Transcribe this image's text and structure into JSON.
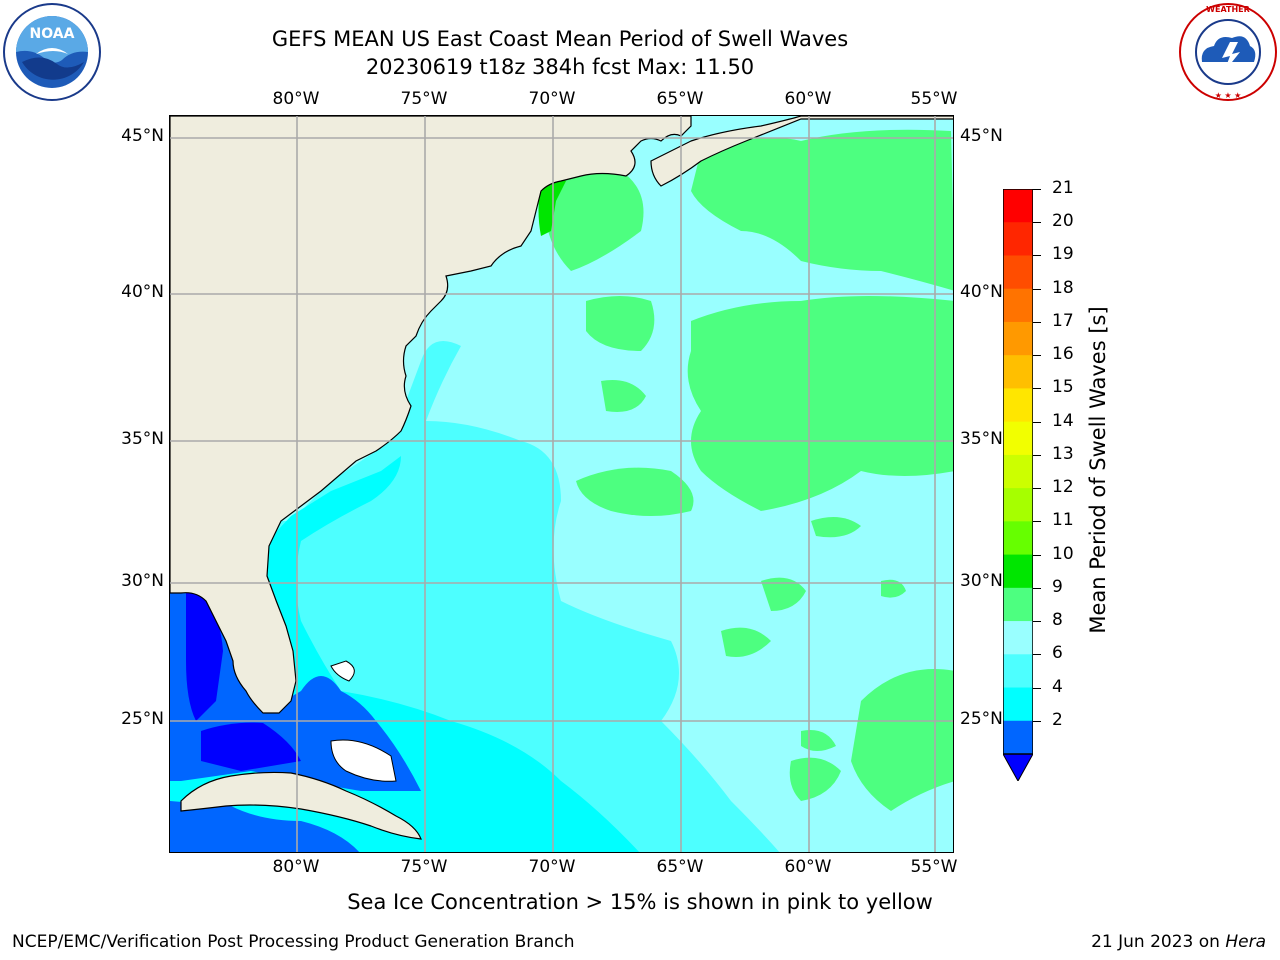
{
  "title": {
    "line1": "GEFS MEAN US East Coast Mean Period of Swell Waves",
    "line2": "20230619 t18z 384h fcst   Max: 11.50"
  },
  "logos": {
    "left": {
      "icon": "noaa-logo-icon",
      "text": "NOAA",
      "ring_text": "NATIONAL OCEANIC AND ATMOSPHERIC ADMINISTRATION · U.S. DEPARTMENT OF COMMERCE"
    },
    "right": {
      "icon": "nws-logo-icon",
      "ring_text": "NATIONAL WEATHER SERVICE"
    }
  },
  "map": {
    "lon_labels": [
      "80°W",
      "75°W",
      "70°W",
      "65°W",
      "60°W",
      "55°W"
    ],
    "lat_labels": [
      "45°N",
      "40°N",
      "35°N",
      "30°N",
      "25°N"
    ],
    "colors": {
      "land": "#efedde",
      "period_2_4": "#0066ff",
      "period_below_2": "#0000ff",
      "period_4_6": "#00ffff",
      "period_6_8": "#4dffff",
      "period_8_9": "#99ffff",
      "period_9_10": "#4dff80",
      "period_10_11": "#00e600",
      "grid": "#aaaaaa"
    }
  },
  "colorbar": {
    "label": "Mean Period of Swell Waves [s]",
    "ticks": [
      "21",
      "20",
      "19",
      "18",
      "17",
      "16",
      "15",
      "14",
      "13",
      "12",
      "11",
      "10",
      "9",
      "8",
      "6",
      "4",
      "2"
    ],
    "colors": [
      "#ff0000",
      "#ff2600",
      "#ff4d00",
      "#ff7300",
      "#ff9900",
      "#ffbf00",
      "#ffe600",
      "#f2ff00",
      "#ccff00",
      "#a6ff00",
      "#66ff00",
      "#00e600",
      "#4dff80",
      "#99ffff",
      "#4dffff",
      "#00ffff",
      "#0066ff"
    ],
    "extend_color": "#0000ff"
  },
  "note": "Sea Ice Concentration > 15% is shown in pink to yellow",
  "footer": {
    "left": "NCEP/EMC/Verification Post Processing Product Generation Branch",
    "right_date": "21 Jun 2023 on ",
    "right_machine": "Hera"
  }
}
